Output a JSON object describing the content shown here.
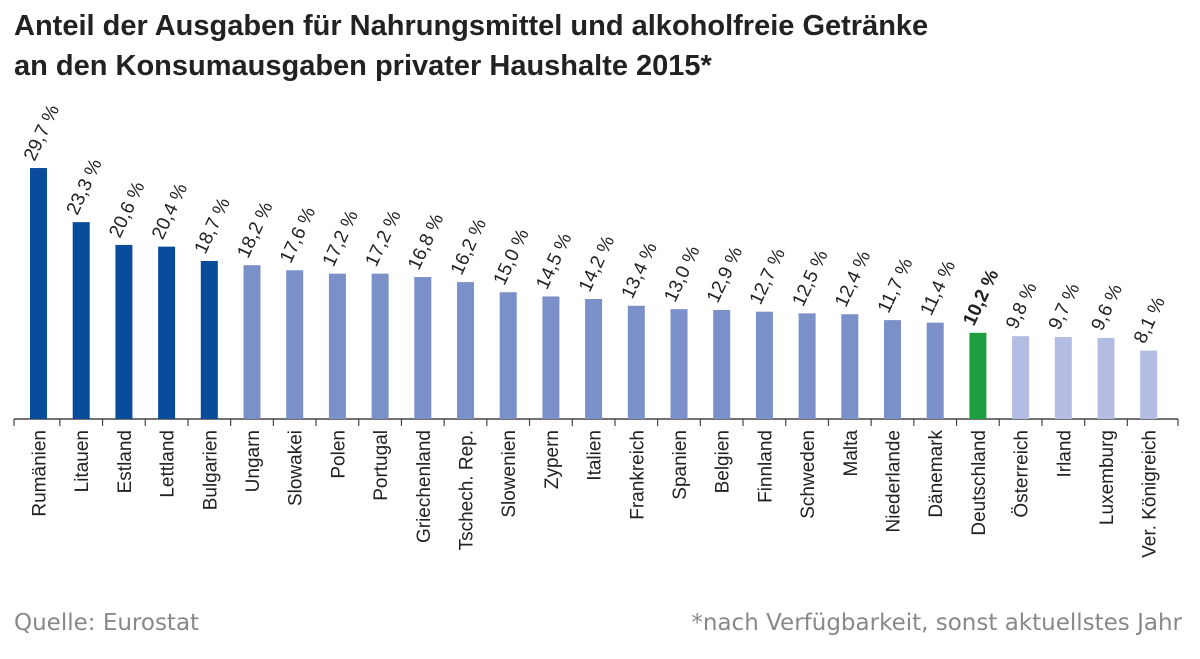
{
  "title": {
    "line1": "Anteil der Ausgaben für Nahrungsmittel und alkoholfreie Getränke",
    "line2": "an den Konsumausgaben privater Haushalte 2015*"
  },
  "footer": {
    "source": "Quelle: Eurostat",
    "note": "*nach Verfügbarkeit, sonst aktuellstes Jahr"
  },
  "colors": {
    "dark_blue": "#0a4c9c",
    "mid_blue": "#7b8fc8",
    "light_blue": "#b3bce2",
    "green": "#1e9e3e",
    "axis": "#444444",
    "label": "#222222"
  },
  "chart_data": {
    "type": "bar",
    "categories": [
      "Rumänien",
      "Litauen",
      "Estland",
      "Lettland",
      "Bulgarien",
      "Ungarn",
      "Slowakei",
      "Polen",
      "Portugal",
      "Griechenland",
      "Tschech. Rep.",
      "Slowenien",
      "Zypern",
      "Italien",
      "Frankreich",
      "Spanien",
      "Belgien",
      "Finnland",
      "Schweden",
      "Malta",
      "Niederlande",
      "Dänemark",
      "Deutschland",
      "Österreich",
      "Irland",
      "Luxemburg",
      "Ver. Königreich"
    ],
    "values": [
      29.7,
      23.3,
      20.6,
      20.4,
      18.7,
      18.2,
      17.6,
      17.2,
      17.2,
      16.8,
      16.2,
      15.0,
      14.5,
      14.2,
      13.4,
      13.0,
      12.9,
      12.7,
      12.5,
      12.4,
      11.7,
      11.4,
      10.2,
      9.8,
      9.7,
      9.6,
      8.1
    ],
    "value_labels": [
      "29,7 %",
      "23,3 %",
      "20,6 %",
      "20,4 %",
      "18,7 %",
      "18,2 %",
      "17,6 %",
      "17,2 %",
      "17,2 %",
      "16,8 %",
      "16,2 %",
      "15,0 %",
      "14,5 %",
      "14,2 %",
      "13,4 %",
      "13,0 %",
      "12,9 %",
      "12,7 %",
      "12,5 %",
      "12,4 %",
      "11,7 %",
      "11,4 %",
      "10,2 %",
      "9,8 %",
      "9,7 %",
      "9,6 %",
      "8,1 %"
    ],
    "bar_colors": [
      "dark_blue",
      "dark_blue",
      "dark_blue",
      "dark_blue",
      "dark_blue",
      "mid_blue",
      "mid_blue",
      "mid_blue",
      "mid_blue",
      "mid_blue",
      "mid_blue",
      "mid_blue",
      "mid_blue",
      "mid_blue",
      "mid_blue",
      "mid_blue",
      "mid_blue",
      "mid_blue",
      "mid_blue",
      "mid_blue",
      "mid_blue",
      "mid_blue",
      "green",
      "light_blue",
      "light_blue",
      "light_blue",
      "light_blue"
    ],
    "highlight": "Deutschland",
    "ylim": [
      0,
      30
    ],
    "xlabel": "",
    "ylabel": "",
    "grid": false,
    "legend": "none"
  }
}
